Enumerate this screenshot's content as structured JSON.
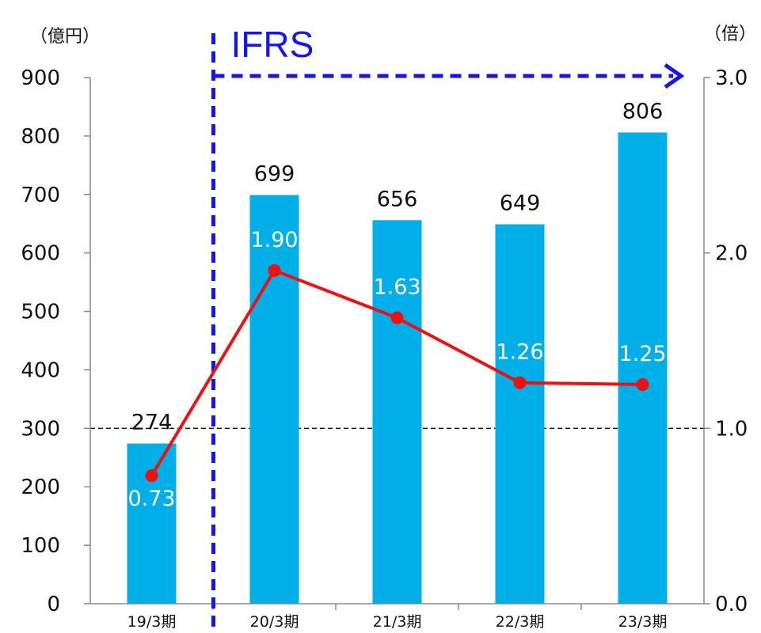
{
  "colors": {
    "bar": "#00aee8",
    "line": "#ee1111",
    "ifrs": "#1515ee",
    "axis": "#888888",
    "reference": "#111111"
  },
  "chart_data": {
    "type": "bar",
    "categories": [
      "19/3期",
      "20/3期",
      "21/3期",
      "22/3期",
      "23/3期"
    ],
    "y_left_unit": "（億円）",
    "y_right_unit": "（倍）",
    "y_left_ticks": [
      "0",
      "100",
      "200",
      "300",
      "400",
      "500",
      "600",
      "700",
      "800",
      "900"
    ],
    "y_right_ticks": [
      "0.0",
      "1.0",
      "2.0",
      "3.0"
    ],
    "ylim": [
      0,
      900
    ],
    "ylim_right": [
      0,
      3
    ],
    "series": [
      {
        "type": "bar",
        "axis": "left",
        "values": [
          274,
          699,
          656,
          649,
          806
        ],
        "labels": [
          "274",
          "699",
          "656",
          "649",
          "806"
        ]
      },
      {
        "type": "line",
        "axis": "right",
        "values": [
          0.73,
          1.9,
          1.63,
          1.26,
          1.25
        ],
        "labels": [
          "0.73",
          "1.90",
          "1.63",
          "1.26",
          "1.25"
        ]
      }
    ],
    "reference_line": {
      "axis": "right",
      "value": 1.0,
      "style": "dashed"
    },
    "annotation": {
      "text": "IFRS",
      "from_category_boundary": 1,
      "style": "dashed-arrow"
    },
    "grid": false,
    "legend": "none"
  }
}
